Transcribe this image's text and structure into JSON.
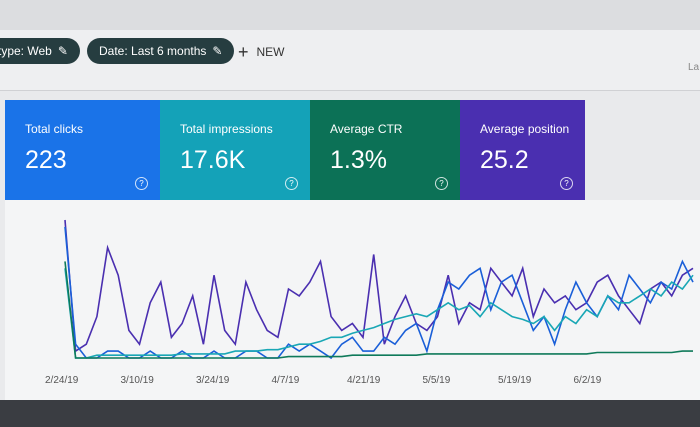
{
  "toolbar": {
    "filters": [
      {
        "label": "type: Web"
      },
      {
        "label": "Date: Last 6 months"
      }
    ],
    "new_label": "NEW",
    "right_text": "La"
  },
  "cards": [
    {
      "label": "Total clicks",
      "value": "223",
      "color": "#1a73e8"
    },
    {
      "label": "Total impressions",
      "value": "17.6K",
      "color": "#14a2b8"
    },
    {
      "label": "Average CTR",
      "value": "1.3%",
      "color": "#0c7156"
    },
    {
      "label": "Average position",
      "value": "25.2",
      "color": "#4a2fb0"
    }
  ],
  "chart_data": {
    "type": "line",
    "x_ticks": [
      "2/24/19",
      "3/10/19",
      "3/24/19",
      "4/7/19",
      "4/21/19",
      "5/5/19",
      "5/19/19",
      "6/2/19"
    ],
    "grid": false,
    "series": [
      {
        "color": "#4a2fb0",
        "values": [
          100,
          5,
          10,
          30,
          80,
          60,
          20,
          10,
          40,
          55,
          15,
          25,
          45,
          10,
          60,
          20,
          10,
          55,
          35,
          20,
          15,
          50,
          45,
          55,
          70,
          30,
          20,
          25,
          15,
          75,
          10,
          30,
          45,
          25,
          20,
          30,
          60,
          25,
          40,
          35,
          65,
          55,
          45,
          65,
          30,
          50,
          40,
          45,
          35,
          40,
          55,
          60,
          45,
          35,
          25,
          50,
          55,
          45,
          60,
          65
        ]
      },
      {
        "color": "#1a5fd8",
        "values": [
          95,
          10,
          0,
          0,
          5,
          5,
          0,
          0,
          5,
          0,
          0,
          5,
          0,
          0,
          5,
          0,
          0,
          5,
          5,
          0,
          0,
          10,
          5,
          10,
          5,
          0,
          10,
          15,
          5,
          5,
          15,
          10,
          20,
          25,
          5,
          35,
          55,
          50,
          60,
          65,
          35,
          55,
          60,
          40,
          20,
          30,
          10,
          35,
          55,
          40,
          30,
          45,
          35,
          60,
          50,
          40,
          55,
          50,
          70,
          55
        ]
      },
      {
        "color": "#19a7b5",
        "values": [
          65,
          0,
          0,
          2,
          2,
          2,
          2,
          2,
          2,
          2,
          2,
          3,
          3,
          3,
          3,
          3,
          5,
          5,
          5,
          6,
          6,
          8,
          10,
          10,
          12,
          15,
          15,
          18,
          20,
          22,
          25,
          28,
          30,
          32,
          30,
          35,
          40,
          35,
          38,
          30,
          40,
          35,
          30,
          28,
          25,
          30,
          20,
          30,
          25,
          35,
          30,
          45,
          40,
          40,
          45,
          50,
          45,
          55,
          50,
          60
        ]
      },
      {
        "color": "#0f7a5a",
        "values": [
          70,
          0,
          0,
          0,
          0,
          0,
          0,
          0,
          0,
          0,
          0,
          0,
          0,
          0,
          0,
          0,
          0,
          0,
          0,
          0,
          0,
          1,
          1,
          1,
          1,
          1,
          1,
          2,
          2,
          2,
          2,
          2,
          2,
          2,
          3,
          3,
          3,
          3,
          3,
          3,
          3,
          3,
          3,
          3,
          3,
          3,
          3,
          3,
          3,
          3,
          4,
          4,
          4,
          4,
          4,
          4,
          4,
          4,
          5,
          5
        ]
      }
    ]
  }
}
